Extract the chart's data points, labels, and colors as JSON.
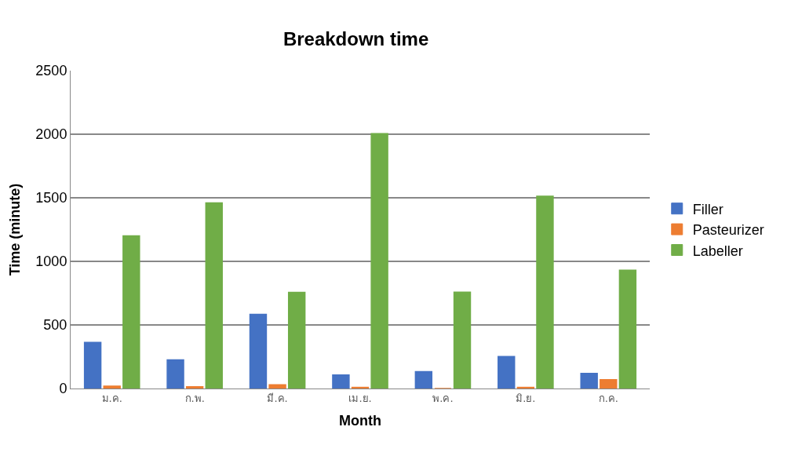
{
  "chart_data": {
    "type": "bar",
    "title": "Breakdown time",
    "xlabel": "Month",
    "ylabel": "Time (minute)",
    "categories": [
      "ม.ค.",
      "ก.พ.",
      "มี.ค.",
      "เม.ย.",
      "พ.ค.",
      "มิ.ย.",
      "ก.ค."
    ],
    "series": [
      {
        "name": "Filler",
        "color": "#4472c4",
        "values": [
          363,
          226,
          584,
          107,
          133,
          251,
          119
        ]
      },
      {
        "name": "Pasteurizer",
        "color": "#ed7d31",
        "values": [
          19,
          14,
          30,
          9,
          0,
          9,
          70
        ]
      },
      {
        "name": "Labeller",
        "color": "#70ad47",
        "values": [
          1200,
          1460,
          756,
          2005,
          758,
          1512,
          930
        ]
      }
    ],
    "ylim": [
      0,
      2500
    ],
    "yticks": [
      0,
      500,
      1000,
      1500,
      2000,
      2500
    ],
    "grid": "y",
    "legend": "right"
  }
}
